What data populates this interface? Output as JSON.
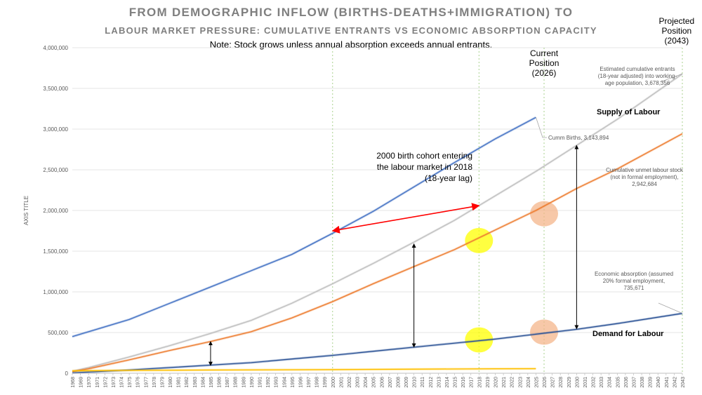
{
  "title": "FROM DEMOGRAPHIC INFLOW (BIRTHS-DEATHS+IMMIGRATION) TO",
  "subtitle": "LABOUR MARKET PRESSURE: CUMULATIVE ENTRANTS VS ECONOMIC ABSORPTION CAPACITY",
  "note": "Note: Stock grows unless annual absorption exceeds annual entrants.",
  "colors": {
    "births": "#4472c4",
    "entrants": "#bfbfbf",
    "unmet": "#ed7d31",
    "absorption": "#2f5597",
    "yellow_series": "#ffc000",
    "arrow_red": "#ff0000",
    "highlight_yellow": "#ffff00",
    "highlight_salmon": "#f4b183",
    "guide_green": "#a9d18e"
  },
  "chart_data": {
    "type": "line",
    "ylabel": "AXIS TITLE",
    "xlabel": "",
    "ylim": [
      0,
      4000000
    ],
    "yticks": [
      0,
      500000,
      1000000,
      1500000,
      2000000,
      2500000,
      3000000,
      3500000,
      4000000
    ],
    "ytick_labels": [
      "0",
      "500,000",
      "1,000,000",
      "1,500,000",
      "2,000,000",
      "2,500,000",
      "3,000,000",
      "3,500,000",
      "4,000,000"
    ],
    "x_range": [
      1968,
      2043
    ],
    "grid": true,
    "series": [
      {
        "key": "births",
        "x": [
          1968,
          1970,
          1975,
          1980,
          1985,
          1990,
          1995,
          2000,
          2005,
          2010,
          2015,
          2020,
          2025
        ],
        "values": [
          450000,
          510000,
          660000,
          860000,
          1060000,
          1260000,
          1460000,
          1720000,
          1990000,
          2290000,
          2590000,
          2880000,
          3143894
        ]
      },
      {
        "key": "entrants",
        "x": [
          1968,
          1970,
          1975,
          1980,
          1985,
          1990,
          1995,
          2000,
          2005,
          2010,
          2015,
          2020,
          2025,
          2030,
          2035,
          2043
        ],
        "values": [
          25000,
          70000,
          200000,
          340000,
          490000,
          650000,
          860000,
          1100000,
          1350000,
          1610000,
          1880000,
          2180000,
          2480000,
          2800000,
          3120000,
          3678356
        ]
      },
      {
        "key": "unmet",
        "x": [
          1968,
          1970,
          1975,
          1980,
          1985,
          1990,
          1995,
          2000,
          2005,
          2010,
          2015,
          2020,
          2025,
          2030,
          2035,
          2043
        ],
        "values": [
          20000,
          55000,
          165000,
          280000,
          390000,
          510000,
          680000,
          880000,
          1100000,
          1310000,
          1520000,
          1760000,
          2000000,
          2270000,
          2510000,
          2942684
        ]
      },
      {
        "key": "absorption",
        "x": [
          1968,
          1970,
          1975,
          1980,
          1985,
          1990,
          1995,
          2000,
          2005,
          2010,
          2015,
          2020,
          2025,
          2030,
          2035,
          2043
        ],
        "values": [
          5000,
          15000,
          40000,
          70000,
          100000,
          130000,
          175000,
          220000,
          270000,
          320000,
          370000,
          420000,
          480000,
          540000,
          610000,
          735671
        ]
      },
      {
        "key": "yellow_series",
        "x": [
          1968,
          1975,
          1985,
          2000,
          2010,
          2020,
          2025
        ],
        "values": [
          30000,
          35000,
          40000,
          45000,
          50000,
          55000,
          56000
        ]
      }
    ],
    "guide_years": [
      2000,
      2018,
      2026,
      2043
    ],
    "annotations": {
      "current_position": [
        "Current",
        "Position",
        "(2026)"
      ],
      "projected_position": [
        "Projected",
        "Position",
        "(2043)"
      ],
      "cohort": [
        "2000 birth cohort entering",
        "the labour market in 2018",
        "(18-year lag)"
      ],
      "cumm_births": "Cumm Births, 3,143,894",
      "entrants_label": [
        "Estimated cumulative entrants",
        "(18-year adjusted) into working-",
        "age population, 3,678,356"
      ],
      "unmet_label": [
        "Cumulative unmet labour stock",
        "(not in formal employment),",
        "2,942,684"
      ],
      "absorption_label": [
        "Economic absorption (assumed",
        "20% formal employment,",
        "735,671"
      ],
      "supply": "Supply of Labour",
      "demand": "Demand for Labour"
    },
    "red_arrow": {
      "from": [
        2018,
        2060000
      ],
      "to": [
        2000,
        1750000
      ]
    },
    "gap_arrows": [
      {
        "x": 1985,
        "y1": 95000,
        "y2": 390000
      },
      {
        "x": 2010,
        "y1": 320000,
        "y2": 1590000
      },
      {
        "x": 2030,
        "y1": 545000,
        "y2": 2800000
      }
    ],
    "highlights": [
      {
        "year": 2018,
        "value": 1630000,
        "color": "yellow"
      },
      {
        "year": 2018,
        "value": 410000,
        "color": "yellow"
      },
      {
        "year": 2026,
        "value": 1960000,
        "color": "salmon"
      },
      {
        "year": 2026,
        "value": 505000,
        "color": "salmon"
      }
    ]
  }
}
